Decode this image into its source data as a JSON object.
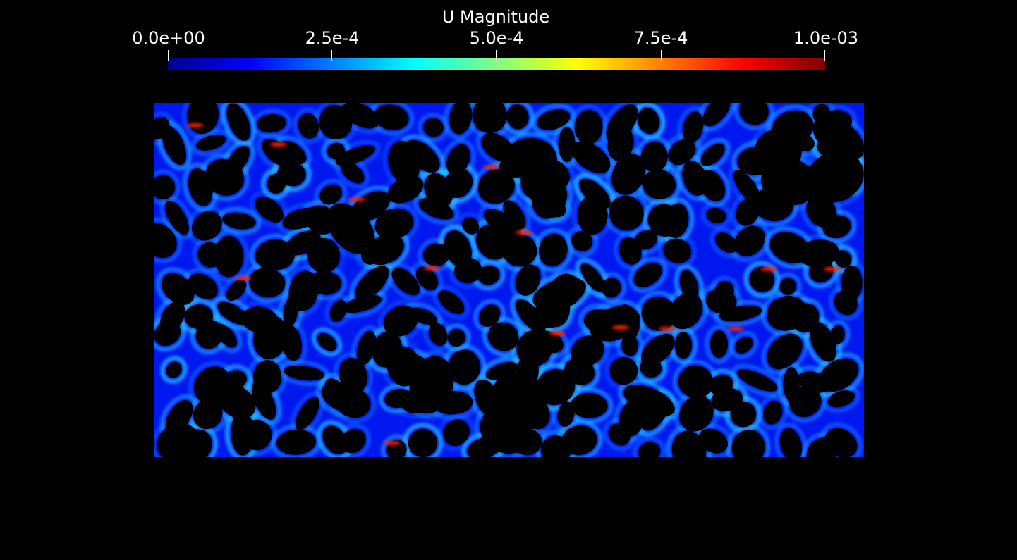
{
  "legend": {
    "title": "U Magnitude",
    "ticks": [
      "0.0e+00",
      "2.5e-4",
      "5.0e-4",
      "7.5e-4",
      "1.0e-03"
    ],
    "colormap": [
      "#00008f",
      "#0000ff",
      "#0080ff",
      "#00ffff",
      "#80ff80",
      "#ffff00",
      "#ff8000",
      "#ff0000",
      "#800000"
    ],
    "range": [
      0,
      0.001
    ]
  },
  "field": {
    "background": "#000000",
    "solid_color": "#000000",
    "low_velocity_color": "#0018f0",
    "medium_velocity_color": "#26c9ff",
    "high_velocity_color": "#ff2200"
  }
}
